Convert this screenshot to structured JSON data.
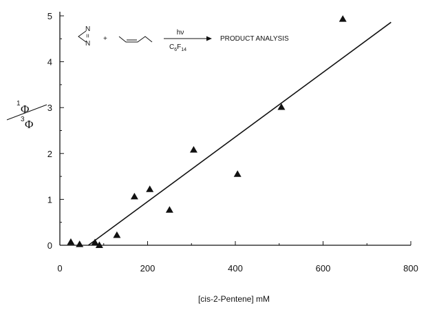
{
  "chart_data": {
    "type": "scatter",
    "xlabel": "[cis-2-Pentene] mM",
    "ylabel": {
      "numerator_sup": "1",
      "numerator": "Φ",
      "denominator_sup": "3",
      "denominator": "Φ"
    },
    "xlim": [
      0,
      800
    ],
    "ylim": [
      0,
      5
    ],
    "xticks": [
      "0",
      "200",
      "400",
      "600",
      "800"
    ],
    "yticks": [
      "0",
      "1",
      "2",
      "3",
      "4",
      "5"
    ],
    "grid": false,
    "marker": "triangle",
    "points": [
      {
        "x": 25,
        "y": 0.07
      },
      {
        "x": 45,
        "y": 0.02
      },
      {
        "x": 80,
        "y": 0.06
      },
      {
        "x": 90,
        "y": 0.0
      },
      {
        "x": 130,
        "y": 0.22
      },
      {
        "x": 170,
        "y": 1.06
      },
      {
        "x": 205,
        "y": 1.22
      },
      {
        "x": 250,
        "y": 0.77
      },
      {
        "x": 305,
        "y": 2.08
      },
      {
        "x": 405,
        "y": 1.55
      },
      {
        "x": 505,
        "y": 3.01
      },
      {
        "x": 645,
        "y": 4.93
      }
    ],
    "fit_line": {
      "x": [
        65,
        755
      ],
      "y": [
        0.0,
        4.86
      ]
    }
  },
  "annotation": {
    "nitrogen_top": "N",
    "nitrogen_bottom": "N",
    "double_bond": "=",
    "plus": "+",
    "arrow_top": "hν",
    "arrow_bottom_prefix": "C",
    "arrow_bottom_sub1": "6",
    "arrow_bottom_mid": "F",
    "arrow_bottom_sub2": "14",
    "product": "PRODUCT ANALYSIS"
  }
}
